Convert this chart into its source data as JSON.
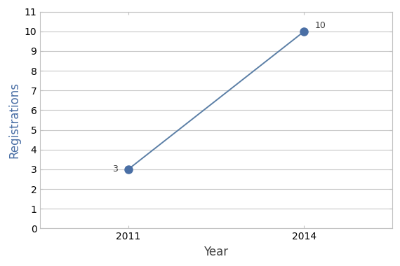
{
  "x": [
    2011,
    2014
  ],
  "y": [
    3,
    10
  ],
  "labels": [
    "3",
    "10"
  ],
  "line_color": "#5b7fa6",
  "marker_color": "#4a6fa5",
  "marker_size": 8,
  "line_width": 1.4,
  "xlabel": "Year",
  "ylabel": "Registrations",
  "xlabel_fontsize": 12,
  "ylabel_fontsize": 12,
  "ylabel_color": "#4a6fa5",
  "xlabel_color": "#404040",
  "ylim": [
    0,
    11
  ],
  "yticks": [
    0,
    1,
    2,
    3,
    4,
    5,
    6,
    7,
    8,
    9,
    10,
    11
  ],
  "xticks": [
    2011,
    2014
  ],
  "grid_color": "#c8c8c8",
  "background_color": "#ffffff",
  "spine_color": "#c0c0c0",
  "annotation_fontsize": 9,
  "annotation_color": "#404040",
  "tick_label_fontsize": 10,
  "xlim": [
    2009.5,
    2015.5
  ]
}
